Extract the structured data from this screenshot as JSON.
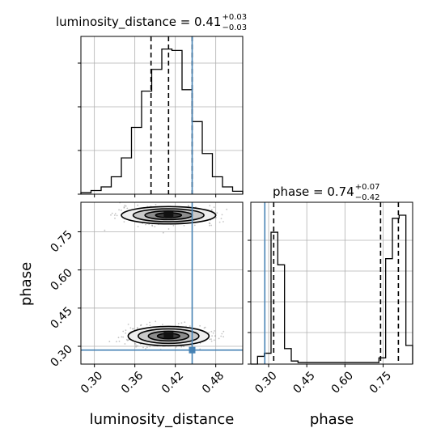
{
  "colors": {
    "truth": "#4682b4",
    "hist": "#000000",
    "grid": "#b0b0b0",
    "scatter": "#555555"
  },
  "chart_data": {
    "type": "corner",
    "grid": true,
    "truths": {
      "luminosity_distance": 0.445,
      "phase": 0.285
    },
    "marginals": [
      {
        "parameter": "luminosity_distance",
        "title": {
          "base": "luminosity_distance = 0.41",
          "plus": "+0.03",
          "minus": "−0.03"
        },
        "bin_edges": [
          0.28,
          0.295,
          0.31,
          0.325,
          0.34,
          0.355,
          0.37,
          0.385,
          0.4,
          0.415,
          0.43,
          0.445,
          0.46,
          0.475,
          0.49,
          0.505,
          0.52
        ],
        "counts": [
          0.01,
          0.025,
          0.05,
          0.12,
          0.25,
          0.46,
          0.71,
          0.86,
          1.0,
          0.99,
          0.72,
          0.5,
          0.28,
          0.12,
          0.05,
          0.02
        ],
        "quantiles": [
          0.384,
          0.41,
          0.445
        ],
        "xlim": [
          0.28,
          0.52
        ]
      },
      {
        "parameter": "phase",
        "title": {
          "base": "phase = 0.74",
          "plus": "+0.07",
          "minus": "−0.42"
        },
        "bin_edges": [
          0.23,
          0.2565,
          0.283,
          0.3095,
          0.336,
          0.3625,
          0.389,
          0.4155,
          0.442,
          0.4685,
          0.495,
          0.5215,
          0.548,
          0.5745,
          0.601,
          0.6275,
          0.654,
          0.6805,
          0.707,
          0.7335,
          0.76,
          0.7865,
          0.813,
          0.8395,
          0.866
        ],
        "counts": [
          0,
          0.05,
          0.07,
          0.85,
          0.64,
          0.1,
          0.02,
          0.01,
          0.01,
          0.01,
          0.01,
          0.01,
          0.01,
          0.01,
          0.01,
          0.01,
          0.01,
          0.01,
          0.01,
          0.04,
          0.68,
          0.94,
          0.96,
          0.12
        ],
        "quantiles": [
          0.32,
          0.74,
          0.81
        ],
        "xlim": [
          0.23,
          0.866
        ]
      }
    ],
    "joint": {
      "x_parameter": "luminosity_distance",
      "y_parameter": "phase",
      "xlabel": "luminosity_distance",
      "ylabel": "phase",
      "xlim": [
        0.28,
        0.52
      ],
      "ylim": [
        0.23,
        0.866
      ],
      "xticks": [
        "0.30",
        "0.36",
        "0.42",
        "0.48"
      ],
      "yticks": [
        "0.30",
        "0.45",
        "0.60",
        "0.75"
      ],
      "modes": [
        {
          "x": 0.41,
          "y": 0.815,
          "sx": 0.035,
          "sy": 0.017
        },
        {
          "x": 0.41,
          "y": 0.34,
          "sx": 0.03,
          "sy": 0.019
        }
      ]
    },
    "phase_axis": {
      "xlabel": "phase",
      "xticks": [
        "0.30",
        "0.45",
        "0.60",
        "0.75"
      ]
    }
  }
}
